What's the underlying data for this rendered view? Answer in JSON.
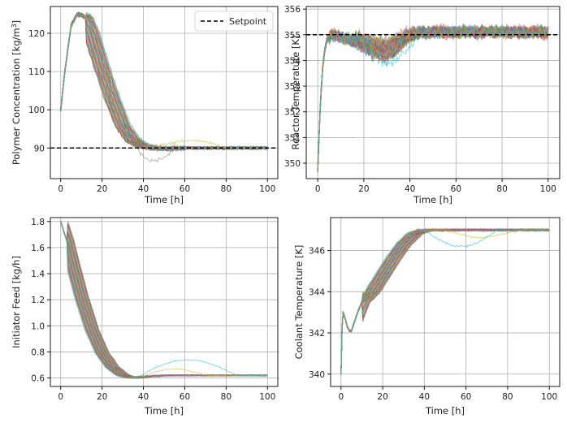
{
  "chart_data": [
    {
      "id": "polymer",
      "type": "line",
      "xlabel": "Time [h]",
      "ylabel": "Polymer Concentration [kg/m",
      "ylabel_sup": "3",
      "ylabel_tail": "]",
      "xlim": [
        -5,
        105
      ],
      "ylim": [
        82,
        127
      ],
      "xticks": [
        0,
        20,
        40,
        60,
        80,
        100
      ],
      "yticks": [
        90,
        100,
        110,
        120
      ],
      "grid": true,
      "legend": {
        "placement": "top-right",
        "entries": [
          {
            "label": "Setpoint",
            "style": "dashed",
            "color": "#000000"
          }
        ]
      },
      "setpoint": 90,
      "series_count": 50,
      "profile": {
        "x": [
          0,
          2,
          5,
          8,
          10,
          12,
          15,
          20,
          25,
          30,
          35,
          40,
          45,
          50,
          60,
          70,
          80,
          90,
          100
        ],
        "y": [
          100,
          110,
          122,
          125,
          124.8,
          124,
          120,
          111,
          103,
          96,
          92,
          90.5,
          90,
          89.8,
          90,
          90,
          90,
          90,
          90
        ]
      }
    },
    {
      "id": "reactor",
      "type": "line",
      "xlabel": "Time [h]",
      "ylabel": "Reactor Temperature [K]",
      "xlim": [
        -5,
        105
      ],
      "ylim": [
        349.4,
        356.1
      ],
      "xticks": [
        0,
        20,
        40,
        60,
        80,
        100
      ],
      "yticks": [
        350,
        351,
        352,
        353,
        354,
        355,
        356
      ],
      "grid": true,
      "setpoint": 355,
      "series_count": 50,
      "profile": {
        "x": [
          0,
          1,
          2,
          3,
          4,
          6,
          10,
          15,
          20,
          25,
          30,
          35,
          40,
          45,
          50,
          60,
          70,
          80,
          90,
          100
        ],
        "y": [
          349.8,
          352,
          353.6,
          354.4,
          354.8,
          355,
          354.9,
          354.8,
          354.7,
          354.5,
          354.4,
          354.7,
          355,
          355.1,
          355.1,
          355.1,
          355.1,
          355.1,
          355.1,
          355.1
        ]
      }
    },
    {
      "id": "initiator",
      "type": "line",
      "xlabel": "Time [h]",
      "ylabel": "Initiator Feed [kg/h]",
      "xlim": [
        -5,
        105
      ],
      "ylim": [
        0.535,
        1.83
      ],
      "xticks": [
        0,
        20,
        40,
        60,
        80,
        100
      ],
      "yticks": [
        0.6,
        0.8,
        1.0,
        1.2,
        1.4,
        1.6,
        1.8
      ],
      "grid": true,
      "series_count": 50,
      "profile": {
        "x": [
          0,
          3,
          5,
          10,
          15,
          20,
          25,
          30,
          35,
          40,
          50,
          60,
          80,
          100
        ],
        "y": [
          1.8,
          1.65,
          1.52,
          1.22,
          0.97,
          0.79,
          0.68,
          0.62,
          0.6,
          0.61,
          0.62,
          0.62,
          0.62,
          0.62
        ]
      }
    },
    {
      "id": "coolant",
      "type": "line",
      "xlabel": "Time [h]",
      "ylabel": "Coolant Temperature [K]",
      "xlim": [
        -5,
        105
      ],
      "ylim": [
        339.4,
        347.6
      ],
      "xticks": [
        0,
        20,
        40,
        60,
        80,
        100
      ],
      "yticks": [
        340,
        342,
        344,
        346
      ],
      "grid": true,
      "series_count": 50,
      "profile": {
        "x": [
          0,
          0.5,
          1,
          2,
          3,
          4,
          5,
          6,
          8,
          10,
          15,
          20,
          25,
          30,
          35,
          40,
          45,
          50,
          60,
          80,
          100
        ],
        "y": [
          340,
          342.2,
          343,
          342.7,
          342.3,
          342.1,
          342.1,
          342.4,
          343,
          343.5,
          344,
          344.8,
          345.6,
          346.3,
          346.8,
          347,
          347,
          347,
          347,
          347,
          347
        ]
      }
    }
  ],
  "palette": [
    "#1f77b4",
    "#ff7f0e",
    "#2ca02c",
    "#d62728",
    "#9467bd",
    "#8c564b",
    "#e377c2",
    "#7f7f7f",
    "#bcbd22",
    "#17becf"
  ]
}
